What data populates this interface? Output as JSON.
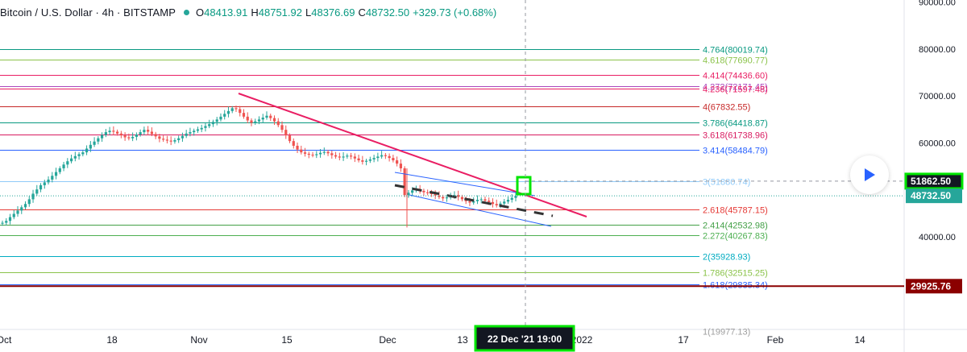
{
  "header": {
    "symbol": "Bitcoin / U.S. Dollar · 4h · BITSTAMP",
    "open_key": "O",
    "open": "48413.91",
    "high_key": "H",
    "high": "48751.92",
    "low_key": "L",
    "low": "48376.69",
    "close_key": "C",
    "close": "48732.50",
    "change": "+329.73 (+0.68%)"
  },
  "colors": {
    "up": "#26a69a",
    "down": "#ef5350",
    "trend": "#e91e63",
    "channel": "#2962ff",
    "highlight": "#00e600",
    "dark_red": "#8b0000"
  },
  "icons": {
    "play": "play-icon"
  },
  "chart_data": {
    "type": "candlestick",
    "ylim": [
      19977.13,
      90000
    ],
    "y_ticks": [
      {
        "value": 90000,
        "label": "90000.00"
      },
      {
        "value": 80000,
        "label": "80000.00"
      },
      {
        "value": 70000,
        "label": "70000.00"
      },
      {
        "value": 60000,
        "label": "60000.00"
      },
      {
        "value": 40000,
        "label": "40000.00"
      }
    ],
    "x_ticks": [
      "Oct",
      "18",
      "Nov",
      "15",
      "Dec",
      "13",
      "2022",
      "17",
      "Feb",
      "14"
    ],
    "crosshair_time": "22 Dec '21   19:00",
    "price_labels": [
      {
        "value": "51862.50",
        "style": "dark-highlight"
      },
      {
        "value": "48732.50",
        "style": "up"
      },
      {
        "value": "29925.76",
        "style": "dark-red"
      }
    ],
    "fib_levels": [
      {
        "ratio": "4.764",
        "price": 80019.74,
        "label": "4.764(80019.74)",
        "color": "#089981"
      },
      {
        "ratio": "4.618",
        "price": 77690.77,
        "label": "4.618(77690.77)",
        "color": "#8bc34a"
      },
      {
        "ratio": "4.414",
        "price": 74436.6,
        "label": "4.414(74436.60)",
        "color": "#e91e63"
      },
      {
        "ratio": "4.272",
        "price": 72171.45,
        "label": "4.272(72171.45)",
        "color": "#ab47bc"
      },
      {
        "ratio": "4.236",
        "price": 71597.48,
        "label": "4.236(71597.48)",
        "color": "#e91e63"
      },
      {
        "ratio": "4",
        "price": 67832.55,
        "label": "4(67832.55)",
        "color": "#c62828"
      },
      {
        "ratio": "3.786",
        "price": 64418.87,
        "label": "3.786(64418.87)",
        "color": "#089981"
      },
      {
        "ratio": "3.618",
        "price": 61738.96,
        "label": "3.618(61738.96)",
        "color": "#d81b60"
      },
      {
        "ratio": "3.414",
        "price": 58484.79,
        "label": "3.414(58484.79)",
        "color": "#2962ff"
      },
      {
        "ratio": "3",
        "price": 51880.74,
        "label": "3(51880.74)",
        "color": "#90caf9"
      },
      {
        "ratio": "2.618",
        "price": 45787.15,
        "label": "2.618(45787.15)",
        "color": "#e53935"
      },
      {
        "ratio": "2.414",
        "price": 42532.98,
        "label": "2.414(42532.98)",
        "color": "#43a047"
      },
      {
        "ratio": "2.272",
        "price": 40267.83,
        "label": "2.272(40267.83)",
        "color": "#4caf50"
      },
      {
        "ratio": "2",
        "price": 35928.93,
        "label": "2(35928.93)",
        "color": "#00acc1"
      },
      {
        "ratio": "1.786",
        "price": 32515.25,
        "label": "1.786(32515.25)",
        "color": "#8bc34a"
      },
      {
        "ratio": "1.618",
        "price": 29835.34,
        "label": "1.618(29835.34)",
        "color": "#2962ff"
      },
      {
        "ratio": "1",
        "price": 19977.13,
        "label": "1(19977.13)",
        "color": "#9e9e9e"
      }
    ],
    "candles_close": [
      43000,
      43400,
      44200,
      44900,
      45600,
      46300,
      47000,
      48000,
      49200,
      50100,
      51000,
      51600,
      52200,
      53000,
      53800,
      54600,
      55400,
      56100,
      56700,
      57200,
      57600,
      58000,
      58800,
      59600,
      60300,
      61000,
      61700,
      62300,
      62600,
      62400,
      62000,
      61600,
      61200,
      61000,
      61300,
      61800,
      62300,
      62800,
      62400,
      61900,
      61400,
      60900,
      60700,
      60500,
      60300,
      60600,
      61000,
      61500,
      62000,
      62300,
      62600,
      62900,
      63200,
      63600,
      64000,
      64500,
      65000,
      65600,
      66200,
      66800,
      67400,
      67200,
      66400,
      65600,
      64800,
      64300,
      64600,
      65000,
      65400,
      65800,
      65300,
      64600,
      63800,
      62800,
      61600,
      60400,
      59400,
      58600,
      58000,
      57700,
      57500,
      57400,
      57600,
      57900,
      58100,
      57800,
      57400,
      57100,
      56900,
      57100,
      57300,
      57100,
      56700,
      56300,
      56000,
      56200,
      56500,
      56800,
      57100,
      57400,
      57200,
      56800,
      56300,
      55600,
      54600,
      48900,
      49400,
      49900,
      50100,
      49800,
      49500,
      49300,
      49100,
      48800,
      48500,
      48200,
      48400,
      48700,
      48900,
      48500,
      48000,
      47600,
      47300,
      47600,
      47900,
      48000,
      47700,
      47400,
      47000,
      46700,
      47100,
      47500,
      47900,
      48300,
      48732.5
    ]
  }
}
